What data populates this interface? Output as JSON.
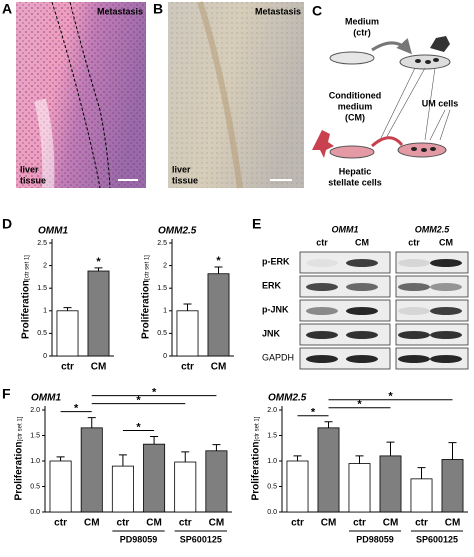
{
  "panels": {
    "A": {
      "letter": "A",
      "top_label": "Metastasis",
      "bottom_label": [
        "liver",
        "tissue"
      ]
    },
    "B": {
      "letter": "B",
      "top_label": "Metastasis",
      "bottom_label": [
        "liver",
        "tissue"
      ]
    },
    "C": {
      "letter": "C",
      "medium": [
        "Medium",
        "(ctr)"
      ],
      "conditioned": [
        "Conditioned",
        "medium",
        "(CM)"
      ],
      "stellate": [
        "Hepatic",
        "stellate cells"
      ],
      "um": "UM cells"
    },
    "D": {
      "letter": "D"
    },
    "E": {
      "letter": "E",
      "columns": [
        "OMM1",
        "OMM2.5"
      ],
      "lanes": [
        "ctr",
        "CM",
        "ctr",
        "CM"
      ],
      "rows": [
        "p-ERK",
        "ERK",
        "p-JNK",
        "JNK",
        "GAPDH"
      ]
    },
    "F": {
      "letter": "F"
    }
  },
  "chart_data": [
    {
      "type": "bar",
      "title": "OMM1",
      "categories": [
        "ctr",
        "CM"
      ],
      "values": [
        1,
        1.88
      ],
      "errors": [
        0.07,
        0.07
      ],
      "colors": [
        "#ffffff",
        "#7f7f7f"
      ],
      "ylabel": "Proliferation",
      "ylabel_unit": "[ctr set 1]",
      "ylim": [
        0,
        2.5
      ],
      "yticks": [
        0,
        0.5,
        1,
        1.5,
        2,
        2.5
      ],
      "annotations": [
        {
          "bar": 1,
          "label": "*"
        }
      ]
    },
    {
      "type": "bar",
      "title": "OMM2.5",
      "categories": [
        "ctr",
        "CM"
      ],
      "values": [
        1,
        1.82
      ],
      "errors": [
        0.15,
        0.15
      ],
      "colors": [
        "#ffffff",
        "#7f7f7f"
      ],
      "ylabel": "Proliferation",
      "ylabel_unit": "[ctr set 1]",
      "ylim": [
        0,
        2.5
      ],
      "yticks": [
        0,
        0.5,
        1,
        1.5,
        2,
        2.5
      ],
      "annotations": [
        {
          "bar": 1,
          "label": "*"
        }
      ]
    },
    {
      "type": "bar",
      "title": "OMM1",
      "categories": [
        "ctr",
        "CM",
        "ctr",
        "CM",
        "ctr",
        "CM"
      ],
      "values": [
        1,
        1.65,
        0.9,
        1.33,
        0.98,
        1.2
      ],
      "errors": [
        0.08,
        0.2,
        0.22,
        0.15,
        0.2,
        0.12
      ],
      "colors": [
        "#ffffff",
        "#7f7f7f",
        "#ffffff",
        "#7f7f7f",
        "#ffffff",
        "#7f7f7f"
      ],
      "ylabel": "Proliferation",
      "ylabel_unit": "[ctr set 1]",
      "ylim": [
        0,
        2
      ],
      "yticks": [
        {
          "value": 0,
          "label": "0.0"
        },
        {
          "value": 0.5,
          "label": "0.5"
        },
        {
          "value": 1,
          "label": "1.0"
        },
        {
          "value": 1.5,
          "label": "1.5"
        },
        {
          "value": 2,
          "label": "2.0"
        }
      ],
      "groups": [
        {
          "label": "PD98059",
          "from": 2,
          "to": 3
        },
        {
          "label": "SP600125",
          "from": 4,
          "to": 5
        }
      ],
      "significance": [
        {
          "from": 2,
          "to": 3,
          "label": "*"
        },
        {
          "from": 0,
          "to": 1,
          "label": "*"
        },
        {
          "from": 1,
          "to": 4,
          "label": "*"
        },
        {
          "from": 1,
          "to": 5,
          "label": "*"
        }
      ]
    },
    {
      "type": "bar",
      "title": "OMM2.5",
      "categories": [
        "ctr",
        "CM",
        "ctr",
        "CM",
        "ctr",
        "CM"
      ],
      "values": [
        1,
        1.65,
        0.95,
        1.1,
        0.65,
        1.03
      ],
      "errors": [
        0.1,
        0.12,
        0.15,
        0.27,
        0.22,
        0.33
      ],
      "colors": [
        "#ffffff",
        "#7f7f7f",
        "#ffffff",
        "#7f7f7f",
        "#ffffff",
        "#7f7f7f"
      ],
      "ylabel": "Proliferation",
      "ylabel_unit": "[ctr set 1]",
      "ylim": [
        0,
        2
      ],
      "yticks": [
        {
          "value": 0,
          "label": "0.0"
        },
        {
          "value": 0.5,
          "label": "0.5"
        },
        {
          "value": 1,
          "label": "1.0"
        },
        {
          "value": 1.5,
          "label": "1.5"
        },
        {
          "value": 2,
          "label": "2.0"
        }
      ],
      "groups": [
        {
          "label": "PD98059",
          "from": 2,
          "to": 3
        },
        {
          "label": "SP600125",
          "from": 4,
          "to": 5
        }
      ],
      "significance": [
        {
          "from": 0,
          "to": 1,
          "label": "*"
        },
        {
          "from": 1,
          "to": 3,
          "label": "*"
        },
        {
          "from": 1,
          "to": 5,
          "label": "*"
        }
      ]
    }
  ]
}
